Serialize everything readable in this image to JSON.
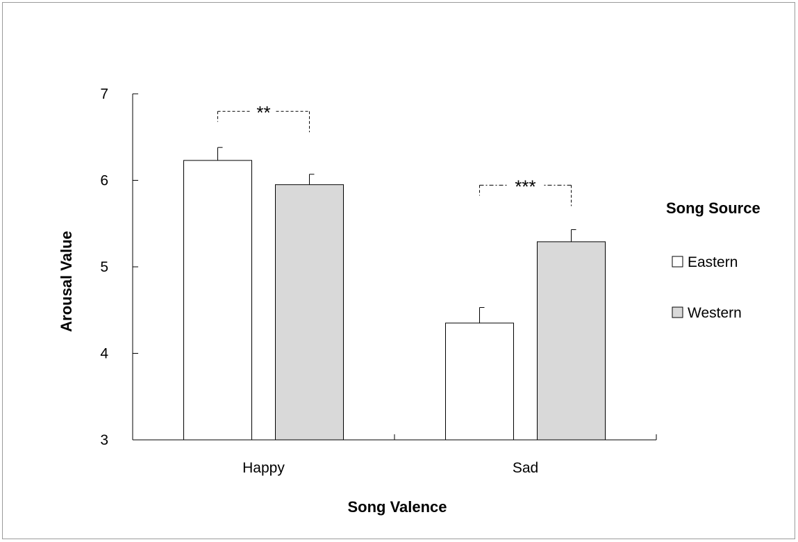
{
  "chart_data": {
    "type": "bar",
    "xlabel": "Song Valence",
    "ylabel": "Arousal Value",
    "categories": [
      "Happy",
      "Sad"
    ],
    "ylim": [
      3,
      7
    ],
    "yticks": [
      3,
      4,
      5,
      6,
      7
    ],
    "series": [
      {
        "name": "Eastern",
        "values": [
          6.23,
          4.35
        ],
        "errors": [
          0.15,
          0.18
        ],
        "color": "#ffffff"
      },
      {
        "name": "Western",
        "values": [
          5.95,
          5.29
        ],
        "errors": [
          0.12,
          0.14
        ],
        "color": "#d9d9d9"
      }
    ],
    "legend": {
      "title": "Song Source",
      "position": "right"
    },
    "significance": [
      {
        "category": "Happy",
        "label": "**"
      },
      {
        "category": "Sad",
        "label": "***"
      }
    ],
    "grid": false
  }
}
